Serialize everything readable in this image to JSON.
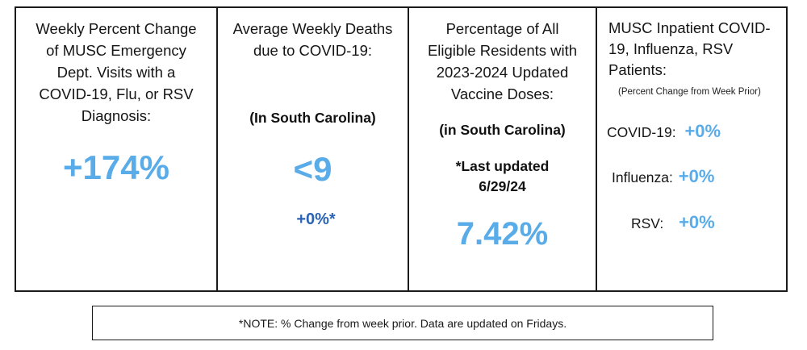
{
  "panels": [
    {
      "heading_lines": [
        "Weekly Percent Change",
        "of MUSC Emergency",
        "Dept. Visits with a",
        "COVID-19, Flu, or RSV",
        "Diagnosis:"
      ],
      "value": "+174%"
    },
    {
      "heading_lines": [
        "Average Weekly Deaths",
        "due to COVID-19:"
      ],
      "region": "(In South Carolina)",
      "value": "<9",
      "change": "+0%*"
    },
    {
      "heading_lines": [
        "Percentage of All",
        "Eligible Residents with",
        "2023-2024 Updated",
        "Vaccine Doses:"
      ],
      "region": "(in South Carolina)",
      "updated_lines": [
        "*Last updated",
        "6/29/24"
      ],
      "value": "7.42%"
    },
    {
      "heading_lines": [
        "MUSC Inpatient COVID-",
        "19, Influenza, RSV",
        "Patients:"
      ],
      "note": "(Percent Change from Week Prior)",
      "stats": [
        {
          "label": "COVID-19:",
          "value": "+0%"
        },
        {
          "label": "Influenza:",
          "value": "+0%"
        },
        {
          "label": "RSV:",
          "value": "+0%"
        }
      ]
    }
  ],
  "footer_note": "*NOTE: % Change from week prior. Data are updated on Fridays."
}
